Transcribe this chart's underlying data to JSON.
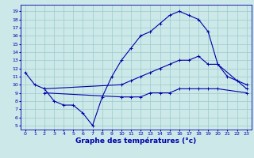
{
  "title": "Graphe des températures (°c)",
  "bg_color": "#cce8e8",
  "line_color": "#0000aa",
  "grid_color": "#99cccc",
  "x_ticks": [
    0,
    1,
    2,
    3,
    4,
    5,
    6,
    7,
    8,
    9,
    10,
    11,
    12,
    13,
    14,
    15,
    16,
    17,
    18,
    19,
    20,
    21,
    22,
    23
  ],
  "y_ticks": [
    5,
    6,
    7,
    8,
    9,
    10,
    11,
    12,
    13,
    14,
    15,
    16,
    17,
    18,
    19
  ],
  "ylim": [
    4.5,
    19.8
  ],
  "xlim": [
    -0.5,
    23.5
  ],
  "line1_x": [
    0,
    1,
    2,
    3,
    4,
    5,
    6,
    7,
    8,
    9,
    10,
    11,
    12,
    13,
    14,
    15,
    16,
    17,
    18,
    19,
    20,
    21,
    22,
    23
  ],
  "line1_y": [
    11.5,
    10.0,
    9.5,
    8.0,
    7.5,
    7.5,
    6.5,
    5.0,
    8.5,
    11.0,
    13.0,
    14.5,
    16.0,
    16.5,
    17.5,
    18.5,
    19.0,
    18.5,
    18.0,
    16.5,
    12.5,
    11.0,
    10.5,
    10.0
  ],
  "line2_x": [
    2,
    10,
    11,
    12,
    13,
    14,
    15,
    16,
    17,
    18,
    19,
    20,
    23
  ],
  "line2_y": [
    9.5,
    10.0,
    10.5,
    11.0,
    11.5,
    12.0,
    12.5,
    13.0,
    13.0,
    13.5,
    12.5,
    12.5,
    9.5
  ],
  "line3_x": [
    2,
    10,
    11,
    12,
    13,
    14,
    15,
    16,
    17,
    18,
    19,
    20,
    23
  ],
  "line3_y": [
    9.0,
    8.5,
    8.5,
    8.5,
    9.0,
    9.0,
    9.0,
    9.5,
    9.5,
    9.5,
    9.5,
    9.5,
    9.0
  ],
  "title_fontsize": 6.5,
  "tick_fontsize": 4.5
}
